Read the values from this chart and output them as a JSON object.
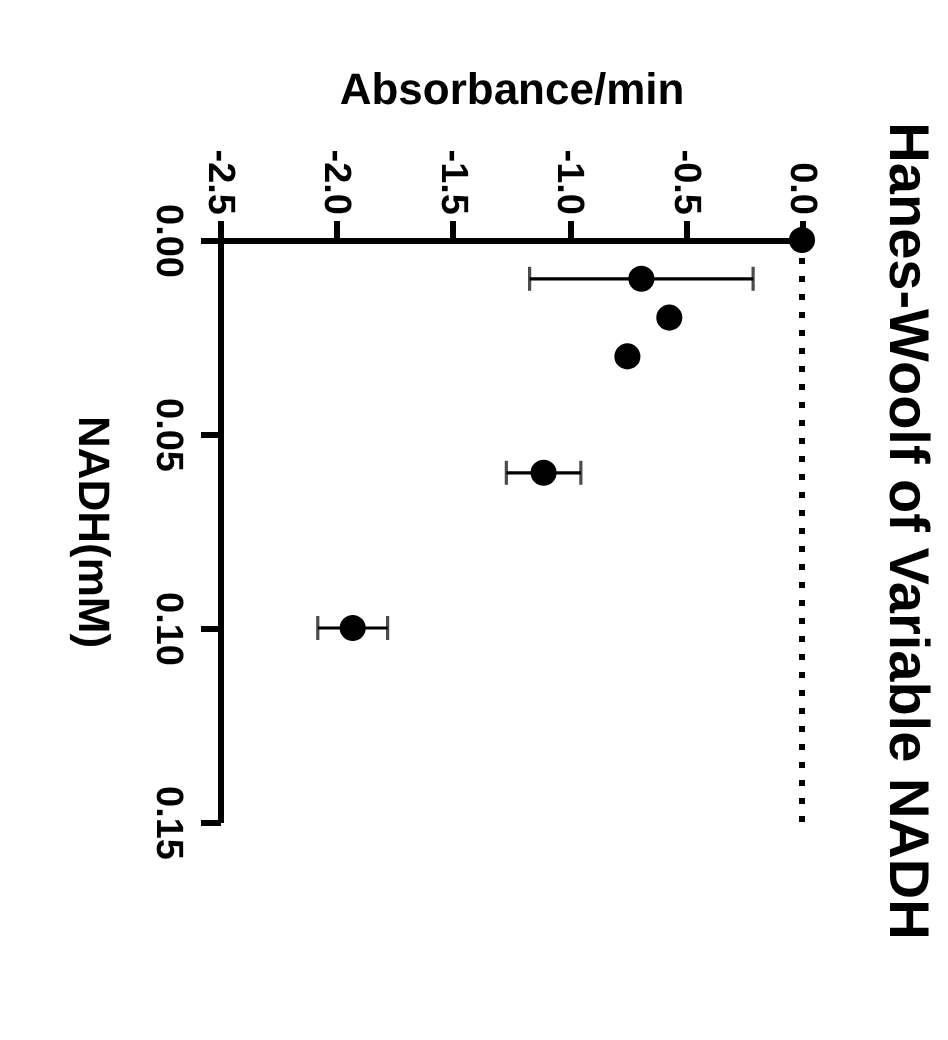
{
  "chart_data": {
    "type": "scatter",
    "title": "Hanes-Woolf of Variable NADH",
    "xlabel": "Absorbance/min",
    "ylabel": "NADH(mM)",
    "x": [
      0.0,
      -0.69,
      -0.57,
      -0.75,
      -1.11,
      -1.93
    ],
    "values": [
      0,
      0.01,
      0.02,
      0.03,
      0.06,
      0.1
    ],
    "xerrors": [
      null,
      0.48,
      null,
      null,
      0.16,
      0.15
    ],
    "color": "#000000",
    "marker": "circle",
    "xlim": [
      -2.5,
      0
    ],
    "xticks": [
      -2.5,
      {
        "value": -2,
        "label": "-2.0"
      },
      -1.5,
      {
        "value": -1,
        "label": "-1.0"
      },
      -0.5,
      {
        "value": 0,
        "label": "0.0"
      }
    ],
    "ylim": [
      0.15,
      0
    ],
    "yticks": [
      {
        "value": 0,
        "label": "0.00"
      },
      0.05,
      {
        "value": 0.1,
        "label": "0.10"
      },
      0.15
    ],
    "ref_lines": [
      {
        "axis": "x",
        "value": 0,
        "line_style": "dotted"
      }
    ]
  }
}
